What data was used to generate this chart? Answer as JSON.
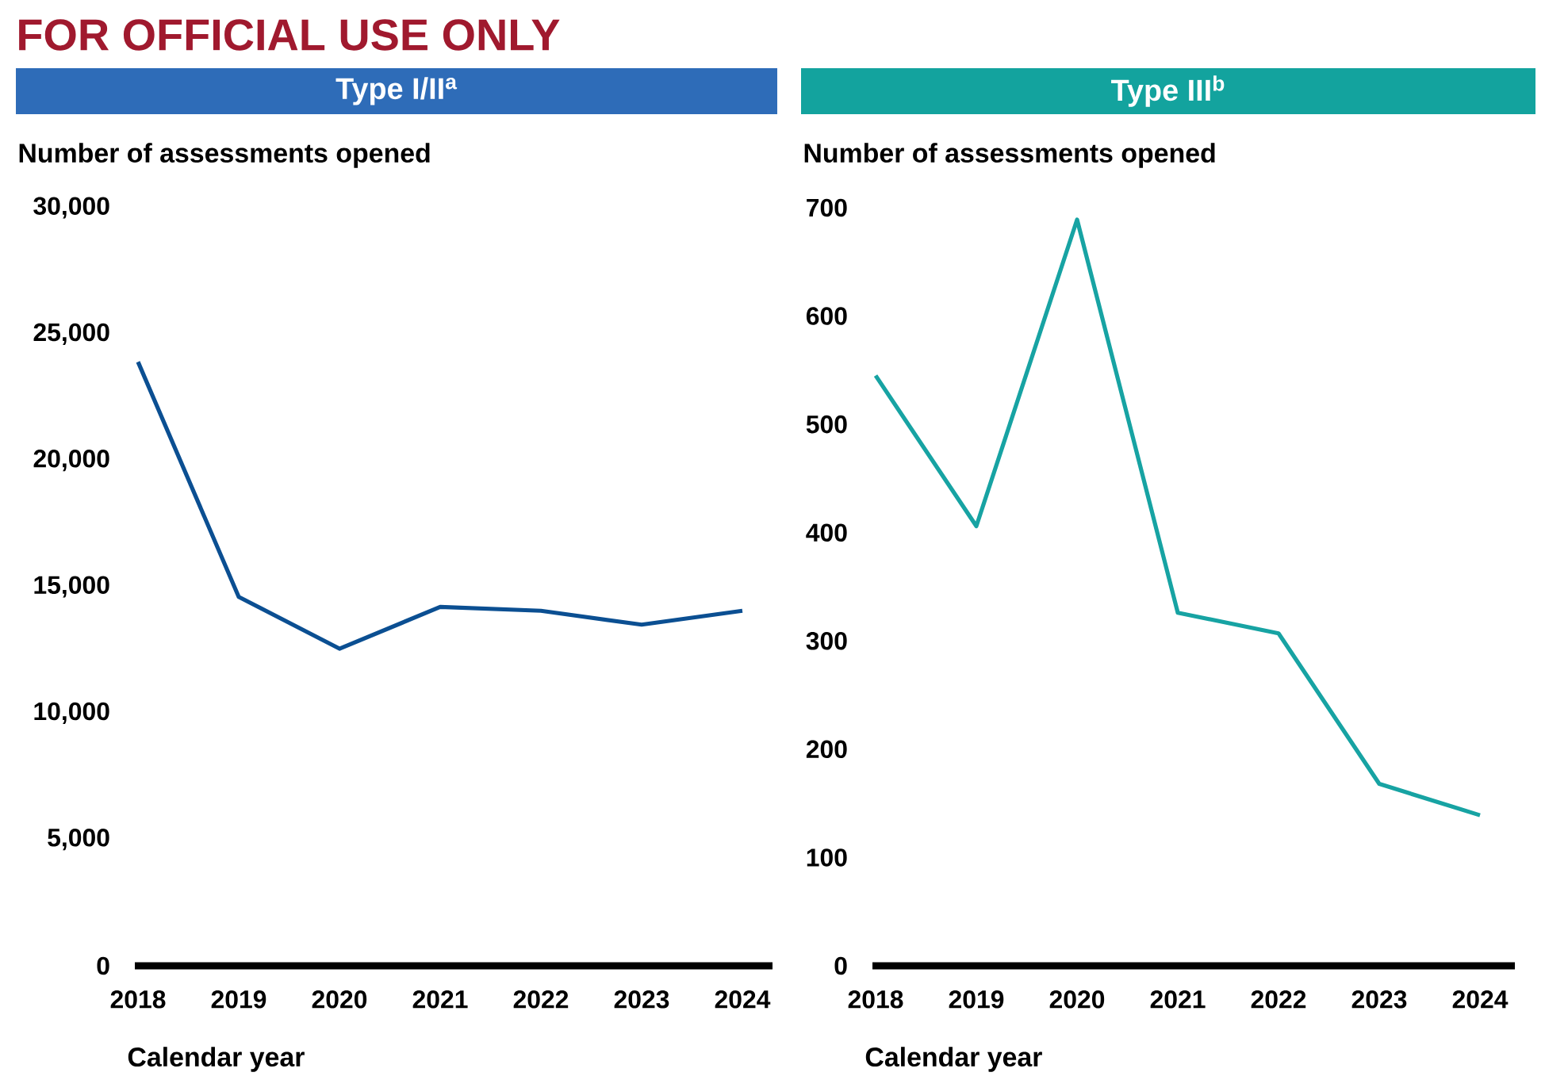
{
  "chart_data": [
    {
      "type": "line",
      "title": "Type I/II$^{a}$",
      "annotations": [
        "FOR OFFICIAL USE ONLY"
      ],
      "xlabel": "Calendar year",
      "ylabel": "Number of assessments opened",
      "categories": [
        "2018",
        "2019",
        "2020",
        "2021",
        "2022",
        "2023",
        "2024"
      ],
      "series": [
        {
          "color": "#0b4f92",
          "values": [
            23900,
            14600,
            12550,
            14200,
            14050,
            13500,
            14050
          ]
        }
      ],
      "ylim": [
        0,
        30000
      ],
      "yticks": [
        0,
        {
          "value": 5000,
          "label": "5,000"
        },
        {
          "value": 10000,
          "label": "10,000"
        },
        {
          "value": 15000,
          "label": "15,000"
        },
        {
          "value": 20000,
          "label": "20,000"
        },
        {
          "value": 25000,
          "label": "25,000"
        },
        {
          "value": 30000,
          "label": "30,000"
        }
      ],
      "marker": "none"
    },
    {
      "type": "line",
      "title": "Type III$^{b}$",
      "xlabel": "Calendar year",
      "ylabel": "Number of assessments opened",
      "categories": [
        "2018",
        "2019",
        "2020",
        "2021",
        "2022",
        "2023",
        "2024"
      ],
      "series": [
        {
          "color": "#17a3a3",
          "values": [
            545,
            406,
            689,
            326,
            307,
            168,
            139
          ]
        }
      ],
      "ylim": [
        0,
        700
      ],
      "yticks": [
        0,
        100,
        200,
        300,
        400,
        500,
        600,
        700
      ],
      "marker": "none"
    }
  ]
}
